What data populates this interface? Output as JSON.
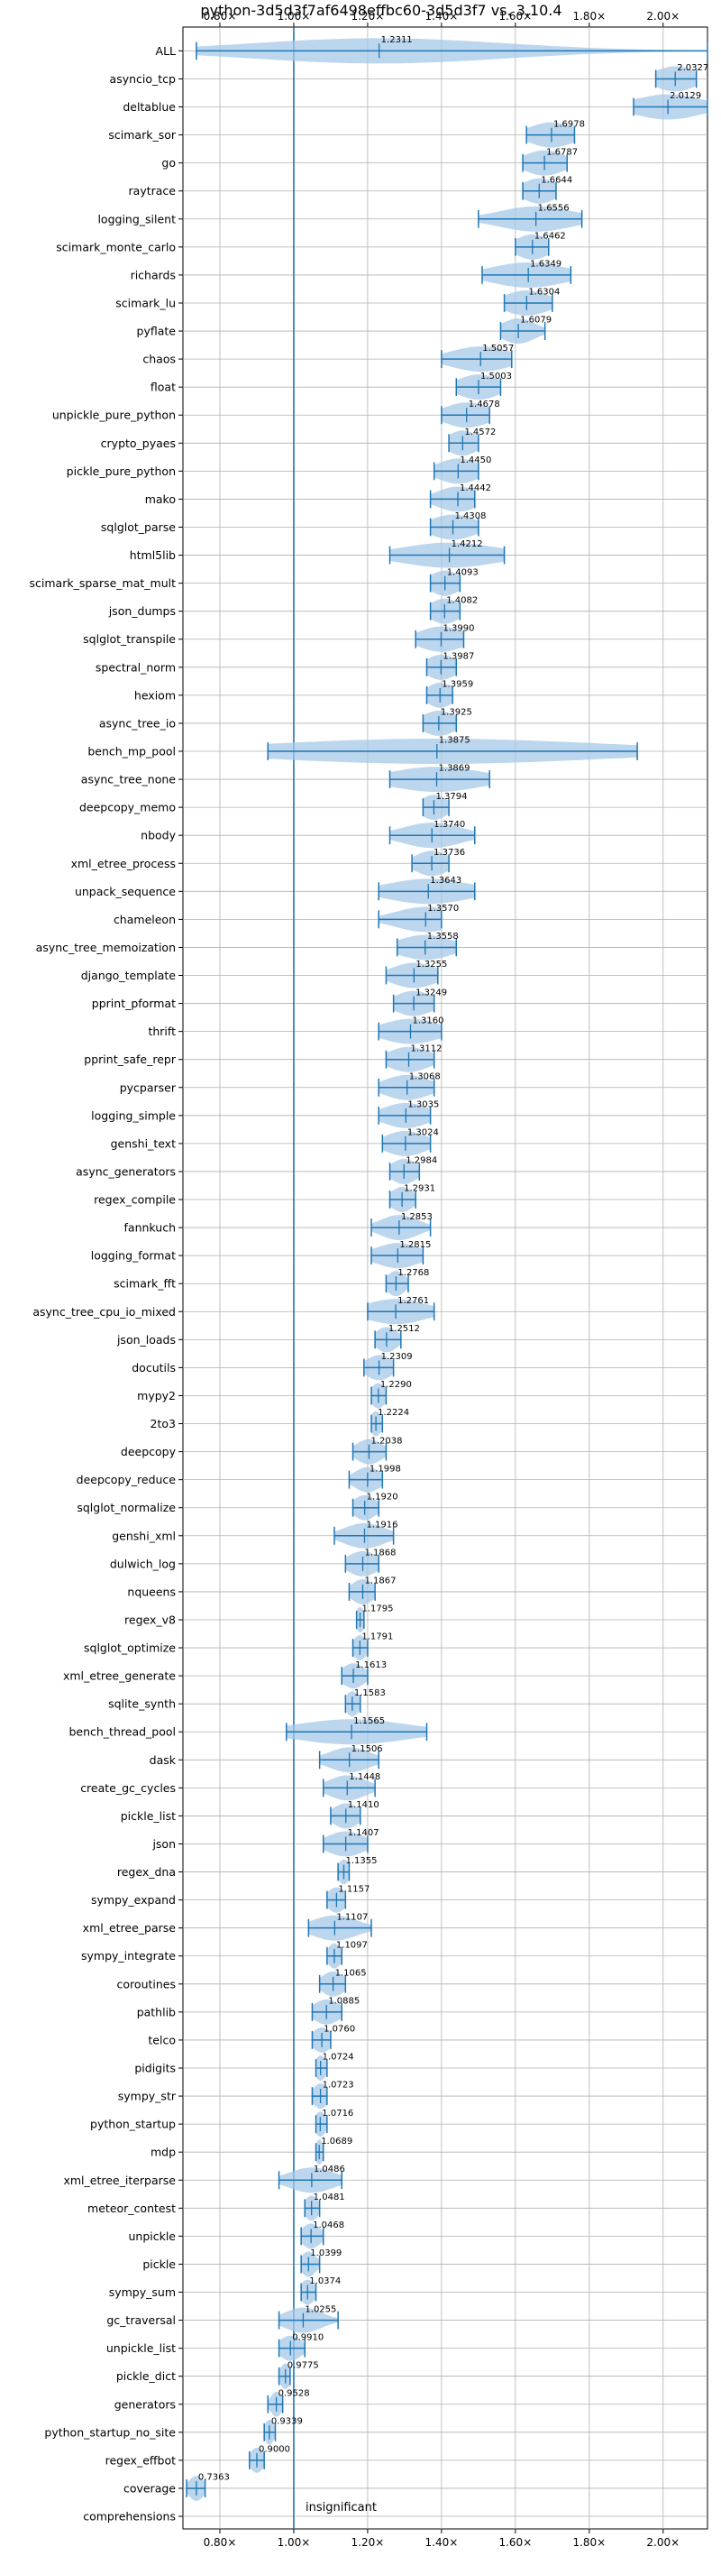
{
  "chart_data": {
    "type": "violin",
    "title": "python-3d5d3f7af6498effbc60-3d5d3f7 vs. 3.10.4",
    "xlim": [
      0.7,
      2.12
    ],
    "xticks": [
      0.8,
      1.0,
      1.2,
      1.4,
      1.6,
      1.8,
      2.0
    ],
    "xtick_labels": [
      "0.80×",
      "1.00×",
      "1.20×",
      "1.40×",
      "1.60×",
      "1.80×",
      "2.00×"
    ],
    "baseline": 1.0,
    "baseline_label": "insignificant",
    "grid": true,
    "colors": {
      "violin": "#a6c8e8",
      "stats": "#1f77b4",
      "baseline": "#1f77b4",
      "grid": "#b0b0b0"
    },
    "benchmarks": [
      {
        "name": "ALL",
        "mean": 1.2311,
        "min": 0.7363,
        "max": 2.12,
        "spread": 0.34,
        "mean_label": "1.2311"
      },
      {
        "name": "asyncio_tcp",
        "mean": 2.0327,
        "min": 1.98,
        "max": 2.09,
        "spread": 0.055,
        "mean_label": "2.0327"
      },
      {
        "name": "deltablue",
        "mean": 2.0129,
        "min": 1.92,
        "max": 2.12,
        "spread": 0.09,
        "mean_label": "2.0129"
      },
      {
        "name": "scimark_sor",
        "mean": 1.6978,
        "min": 1.63,
        "max": 1.76,
        "spread": 0.06,
        "mean_label": "1.6978"
      },
      {
        "name": "go",
        "mean": 1.6787,
        "min": 1.62,
        "max": 1.74,
        "spread": 0.055,
        "mean_label": "1.6787"
      },
      {
        "name": "raytrace",
        "mean": 1.6644,
        "min": 1.62,
        "max": 1.71,
        "spread": 0.045,
        "mean_label": "1.6644"
      },
      {
        "name": "logging_silent",
        "mean": 1.6556,
        "min": 1.5,
        "max": 1.78,
        "spread": 0.1,
        "mean_label": "1.6556"
      },
      {
        "name": "scimark_monte_carlo",
        "mean": 1.6462,
        "min": 1.6,
        "max": 1.69,
        "spread": 0.045,
        "mean_label": "1.6462"
      },
      {
        "name": "richards",
        "mean": 1.6349,
        "min": 1.51,
        "max": 1.75,
        "spread": 0.1,
        "mean_label": "1.6349"
      },
      {
        "name": "scimark_lu",
        "mean": 1.6304,
        "min": 1.57,
        "max": 1.7,
        "spread": 0.06,
        "mean_label": "1.6304"
      },
      {
        "name": "pyflate",
        "mean": 1.6079,
        "min": 1.56,
        "max": 1.68,
        "spread": 0.045,
        "mean_label": "1.6079"
      },
      {
        "name": "chaos",
        "mean": 1.5057,
        "min": 1.4,
        "max": 1.59,
        "spread": 0.08,
        "mean_label": "1.5057"
      },
      {
        "name": "float",
        "mean": 1.5003,
        "min": 1.44,
        "max": 1.56,
        "spread": 0.055,
        "mean_label": "1.5003"
      },
      {
        "name": "unpickle_pure_python",
        "mean": 1.4678,
        "min": 1.4,
        "max": 1.53,
        "spread": 0.06,
        "mean_label": "1.4678"
      },
      {
        "name": "crypto_pyaes",
        "mean": 1.4572,
        "min": 1.42,
        "max": 1.5,
        "spread": 0.04,
        "mean_label": "1.4572"
      },
      {
        "name": "pickle_pure_python",
        "mean": 1.445,
        "min": 1.38,
        "max": 1.5,
        "spread": 0.055,
        "mean_label": "1.4450"
      },
      {
        "name": "mako",
        "mean": 1.4442,
        "min": 1.37,
        "max": 1.49,
        "spread": 0.055,
        "mean_label": "1.4442"
      },
      {
        "name": "sqlglot_parse",
        "mean": 1.4308,
        "min": 1.37,
        "max": 1.5,
        "spread": 0.06,
        "mean_label": "1.4308"
      },
      {
        "name": "html5lib",
        "mean": 1.4212,
        "min": 1.26,
        "max": 1.57,
        "spread": 0.13,
        "mean_label": "1.4212"
      },
      {
        "name": "scimark_sparse_mat_mult",
        "mean": 1.4093,
        "min": 1.37,
        "max": 1.45,
        "spread": 0.04,
        "mean_label": "1.4093"
      },
      {
        "name": "json_dumps",
        "mean": 1.4082,
        "min": 1.37,
        "max": 1.45,
        "spread": 0.04,
        "mean_label": "1.4082"
      },
      {
        "name": "sqlglot_transpile",
        "mean": 1.399,
        "min": 1.33,
        "max": 1.46,
        "spread": 0.06,
        "mean_label": "1.3990"
      },
      {
        "name": "spectral_norm",
        "mean": 1.3987,
        "min": 1.36,
        "max": 1.44,
        "spread": 0.04,
        "mean_label": "1.3987"
      },
      {
        "name": "hexiom",
        "mean": 1.3959,
        "min": 1.36,
        "max": 1.43,
        "spread": 0.035,
        "mean_label": "1.3959"
      },
      {
        "name": "async_tree_io",
        "mean": 1.3925,
        "min": 1.35,
        "max": 1.44,
        "spread": 0.045,
        "mean_label": "1.3925"
      },
      {
        "name": "bench_mp_pool",
        "mean": 1.3875,
        "min": 0.93,
        "max": 1.93,
        "spread": 0.45,
        "mean_label": "1.3875"
      },
      {
        "name": "async_tree_none",
        "mean": 1.3869,
        "min": 1.26,
        "max": 1.53,
        "spread": 0.12,
        "mean_label": "1.3869"
      },
      {
        "name": "deepcopy_memo",
        "mean": 1.3794,
        "min": 1.35,
        "max": 1.42,
        "spread": 0.035,
        "mean_label": "1.3794"
      },
      {
        "name": "nbody",
        "mean": 1.374,
        "min": 1.26,
        "max": 1.49,
        "spread": 0.08,
        "mean_label": "1.3740"
      },
      {
        "name": "xml_etree_process",
        "mean": 1.3736,
        "min": 1.32,
        "max": 1.42,
        "spread": 0.045,
        "mean_label": "1.3736"
      },
      {
        "name": "unpack_sequence",
        "mean": 1.3643,
        "min": 1.23,
        "max": 1.49,
        "spread": 0.11,
        "mean_label": "1.3643"
      },
      {
        "name": "chameleon",
        "mean": 1.357,
        "min": 1.23,
        "max": 1.4,
        "spread": 0.08,
        "mean_label": "1.3570"
      },
      {
        "name": "async_tree_memoization",
        "mean": 1.3558,
        "min": 1.28,
        "max": 1.44,
        "spread": 0.07,
        "mean_label": "1.3558"
      },
      {
        "name": "django_template",
        "mean": 1.3255,
        "min": 1.25,
        "max": 1.39,
        "spread": 0.06,
        "mean_label": "1.3255"
      },
      {
        "name": "pprint_pformat",
        "mean": 1.3249,
        "min": 1.27,
        "max": 1.38,
        "spread": 0.05,
        "mean_label": "1.3249"
      },
      {
        "name": "thrift",
        "mean": 1.316,
        "min": 1.23,
        "max": 1.4,
        "spread": 0.075,
        "mean_label": "1.3160"
      },
      {
        "name": "pprint_safe_repr",
        "mean": 1.3112,
        "min": 1.25,
        "max": 1.38,
        "spread": 0.055,
        "mean_label": "1.3112"
      },
      {
        "name": "pycparser",
        "mean": 1.3068,
        "min": 1.23,
        "max": 1.38,
        "spread": 0.06,
        "mean_label": "1.3068"
      },
      {
        "name": "logging_simple",
        "mean": 1.3035,
        "min": 1.23,
        "max": 1.37,
        "spread": 0.06,
        "mean_label": "1.3035"
      },
      {
        "name": "genshi_text",
        "mean": 1.3024,
        "min": 1.24,
        "max": 1.37,
        "spread": 0.055,
        "mean_label": "1.3024"
      },
      {
        "name": "async_generators",
        "mean": 1.2984,
        "min": 1.26,
        "max": 1.34,
        "spread": 0.035,
        "mean_label": "1.2984"
      },
      {
        "name": "regex_compile",
        "mean": 1.2931,
        "min": 1.26,
        "max": 1.33,
        "spread": 0.03,
        "mean_label": "1.2931"
      },
      {
        "name": "fannkuch",
        "mean": 1.2853,
        "min": 1.21,
        "max": 1.37,
        "spread": 0.05,
        "mean_label": "1.2853"
      },
      {
        "name": "logging_format",
        "mean": 1.2815,
        "min": 1.21,
        "max": 1.35,
        "spread": 0.06,
        "mean_label": "1.2815"
      },
      {
        "name": "scimark_fft",
        "mean": 1.2768,
        "min": 1.25,
        "max": 1.31,
        "spread": 0.025,
        "mean_label": "1.2768"
      },
      {
        "name": "async_tree_cpu_io_mixed",
        "mean": 1.2761,
        "min": 1.2,
        "max": 1.38,
        "spread": 0.08,
        "mean_label": "1.2761"
      },
      {
        "name": "json_loads",
        "mean": 1.2512,
        "min": 1.22,
        "max": 1.29,
        "spread": 0.03,
        "mean_label": "1.2512"
      },
      {
        "name": "docutils",
        "mean": 1.2309,
        "min": 1.19,
        "max": 1.27,
        "spread": 0.035,
        "mean_label": "1.2309"
      },
      {
        "name": "mypy2",
        "mean": 1.229,
        "min": 1.21,
        "max": 1.25,
        "spread": 0.02,
        "mean_label": "1.2290"
      },
      {
        "name": "2to3",
        "mean": 1.2224,
        "min": 1.21,
        "max": 1.24,
        "spread": 0.015,
        "mean_label": "1.2224"
      },
      {
        "name": "deepcopy",
        "mean": 1.2038,
        "min": 1.16,
        "max": 1.25,
        "spread": 0.035,
        "mean_label": "1.2038"
      },
      {
        "name": "deepcopy_reduce",
        "mean": 1.1998,
        "min": 1.15,
        "max": 1.24,
        "spread": 0.035,
        "mean_label": "1.1998"
      },
      {
        "name": "sqlglot_normalize",
        "mean": 1.192,
        "min": 1.16,
        "max": 1.23,
        "spread": 0.03,
        "mean_label": "1.1920"
      },
      {
        "name": "genshi_xml",
        "mean": 1.1916,
        "min": 1.11,
        "max": 1.27,
        "spread": 0.055,
        "mean_label": "1.1916"
      },
      {
        "name": "dulwich_log",
        "mean": 1.1868,
        "min": 1.14,
        "max": 1.23,
        "spread": 0.04,
        "mean_label": "1.1868"
      },
      {
        "name": "nqueens",
        "mean": 1.1867,
        "min": 1.15,
        "max": 1.22,
        "spread": 0.03,
        "mean_label": "1.1867"
      },
      {
        "name": "regex_v8",
        "mean": 1.1795,
        "min": 1.17,
        "max": 1.19,
        "spread": 0.012,
        "mean_label": "1.1795"
      },
      {
        "name": "sqlglot_optimize",
        "mean": 1.1791,
        "min": 1.16,
        "max": 1.2,
        "spread": 0.018,
        "mean_label": "1.1791"
      },
      {
        "name": "xml_etree_generate",
        "mean": 1.1613,
        "min": 1.13,
        "max": 1.2,
        "spread": 0.03,
        "mean_label": "1.1613"
      },
      {
        "name": "sqlite_synth",
        "mean": 1.1583,
        "min": 1.14,
        "max": 1.18,
        "spread": 0.018,
        "mean_label": "1.1583"
      },
      {
        "name": "bench_thread_pool",
        "mean": 1.1565,
        "min": 0.98,
        "max": 1.36,
        "spread": 0.15,
        "mean_label": "1.1565"
      },
      {
        "name": "dask",
        "mean": 1.1506,
        "min": 1.07,
        "max": 1.23,
        "spread": 0.055,
        "mean_label": "1.1506"
      },
      {
        "name": "create_gc_cycles",
        "mean": 1.1448,
        "min": 1.08,
        "max": 1.22,
        "spread": 0.05,
        "mean_label": "1.1448"
      },
      {
        "name": "pickle_list",
        "mean": 1.141,
        "min": 1.1,
        "max": 1.18,
        "spread": 0.035,
        "mean_label": "1.1410"
      },
      {
        "name": "json",
        "mean": 1.1407,
        "min": 1.08,
        "max": 1.2,
        "spread": 0.05,
        "mean_label": "1.1407"
      },
      {
        "name": "regex_dna",
        "mean": 1.1355,
        "min": 1.12,
        "max": 1.15,
        "spread": 0.015,
        "mean_label": "1.1355"
      },
      {
        "name": "sympy_expand",
        "mean": 1.1157,
        "min": 1.09,
        "max": 1.14,
        "spread": 0.025,
        "mean_label": "1.1157"
      },
      {
        "name": "xml_etree_parse",
        "mean": 1.1107,
        "min": 1.04,
        "max": 1.21,
        "spread": 0.06,
        "mean_label": "1.1107"
      },
      {
        "name": "sympy_integrate",
        "mean": 1.1097,
        "min": 1.09,
        "max": 1.13,
        "spread": 0.018,
        "mean_label": "1.1097"
      },
      {
        "name": "coroutines",
        "mean": 1.1065,
        "min": 1.07,
        "max": 1.14,
        "spread": 0.03,
        "mean_label": "1.1065"
      },
      {
        "name": "pathlib",
        "mean": 1.0885,
        "min": 1.05,
        "max": 1.13,
        "spread": 0.035,
        "mean_label": "1.0885"
      },
      {
        "name": "telco",
        "mean": 1.076,
        "min": 1.05,
        "max": 1.1,
        "spread": 0.025,
        "mean_label": "1.0760"
      },
      {
        "name": "pidigits",
        "mean": 1.0724,
        "min": 1.06,
        "max": 1.09,
        "spread": 0.015,
        "mean_label": "1.0724"
      },
      {
        "name": "sympy_str",
        "mean": 1.0723,
        "min": 1.05,
        "max": 1.09,
        "spread": 0.02,
        "mean_label": "1.0723"
      },
      {
        "name": "python_startup",
        "mean": 1.0716,
        "min": 1.06,
        "max": 1.09,
        "spread": 0.015,
        "mean_label": "1.0716"
      },
      {
        "name": "mdp",
        "mean": 1.0689,
        "min": 1.06,
        "max": 1.08,
        "spread": 0.01,
        "mean_label": "1.0689"
      },
      {
        "name": "xml_etree_iterparse",
        "mean": 1.0486,
        "min": 0.96,
        "max": 1.13,
        "spread": 0.06,
        "mean_label": "1.0486"
      },
      {
        "name": "meteor_contest",
        "mean": 1.0481,
        "min": 1.03,
        "max": 1.07,
        "spread": 0.018,
        "mean_label": "1.0481"
      },
      {
        "name": "unpickle",
        "mean": 1.0468,
        "min": 1.02,
        "max": 1.08,
        "spread": 0.025,
        "mean_label": "1.0468"
      },
      {
        "name": "pickle",
        "mean": 1.0399,
        "min": 1.02,
        "max": 1.07,
        "spread": 0.02,
        "mean_label": "1.0399"
      },
      {
        "name": "sympy_sum",
        "mean": 1.0374,
        "min": 1.02,
        "max": 1.06,
        "spread": 0.02,
        "mean_label": "1.0374"
      },
      {
        "name": "gc_traversal",
        "mean": 1.0255,
        "min": 0.96,
        "max": 1.12,
        "spread": 0.05,
        "mean_label": "1.0255"
      },
      {
        "name": "unpickle_list",
        "mean": 0.991,
        "min": 0.96,
        "max": 1.03,
        "spread": 0.03,
        "mean_label": "0.9910"
      },
      {
        "name": "pickle_dict",
        "mean": 0.9775,
        "min": 0.96,
        "max": 0.99,
        "spread": 0.015,
        "mean_label": "0.9775"
      },
      {
        "name": "generators",
        "mean": 0.9528,
        "min": 0.93,
        "max": 0.97,
        "spread": 0.015,
        "mean_label": "0.9528"
      },
      {
        "name": "python_startup_no_site",
        "mean": 0.9339,
        "min": 0.92,
        "max": 0.95,
        "spread": 0.012,
        "mean_label": "0.9339"
      },
      {
        "name": "regex_effbot",
        "mean": 0.9,
        "min": 0.88,
        "max": 0.92,
        "spread": 0.018,
        "mean_label": "0.9000"
      },
      {
        "name": "coverage",
        "mean": 0.7363,
        "min": 0.71,
        "max": 0.76,
        "spread": 0.02,
        "mean_label": "0.7363"
      },
      {
        "name": "comprehensions",
        "mean": null,
        "min": null,
        "max": null,
        "spread": 0,
        "mean_label": ""
      }
    ]
  }
}
